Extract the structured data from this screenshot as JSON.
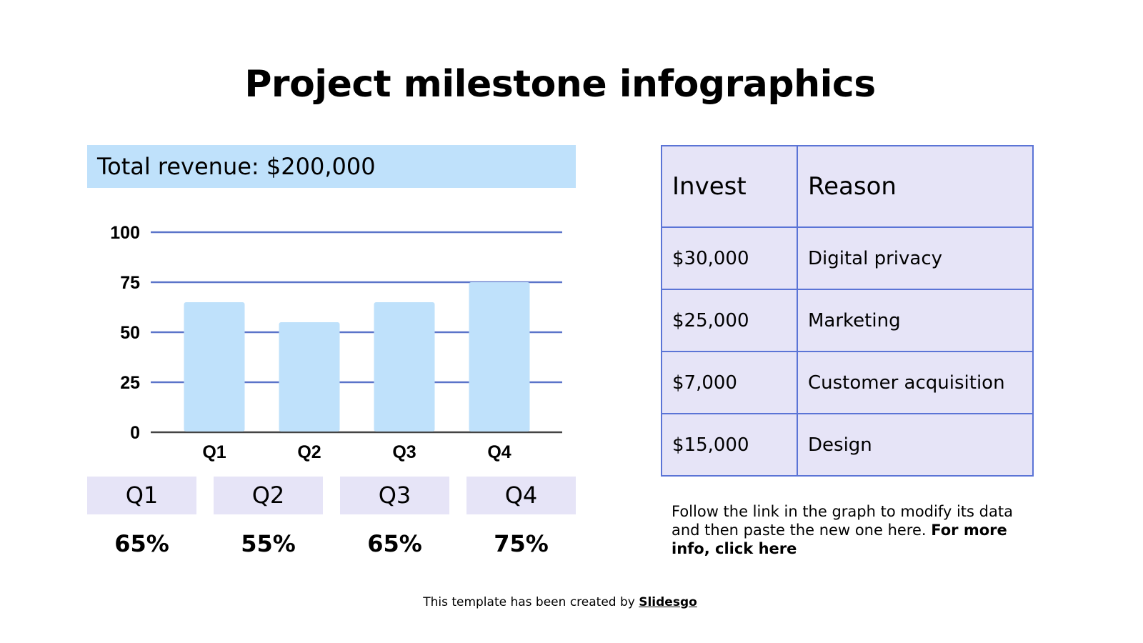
{
  "title": "Project milestone infographics",
  "revenue_label": "Total revenue: $200,000",
  "chart_data": {
    "type": "bar",
    "categories": [
      "Q1",
      "Q2",
      "Q3",
      "Q4"
    ],
    "values": [
      65,
      55,
      65,
      75
    ],
    "ylim": [
      0,
      100
    ],
    "yticks": [
      0,
      25,
      50,
      75,
      100
    ],
    "grid": true,
    "bar_color": "#bfe1fb",
    "grid_color": "#5b74c9"
  },
  "quarters": [
    {
      "label": "Q1",
      "percent": "65%"
    },
    {
      "label": "Q2",
      "percent": "55%"
    },
    {
      "label": "Q3",
      "percent": "65%"
    },
    {
      "label": "Q4",
      "percent": "75%"
    }
  ],
  "table": {
    "headers": [
      "Invest",
      "Reason"
    ],
    "rows": [
      [
        "$30,000",
        "Digital privacy"
      ],
      [
        "$25,000",
        "Marketing"
      ],
      [
        "$7,000",
        "Customer acquisition"
      ],
      [
        "$15,000",
        "Design"
      ]
    ]
  },
  "note": {
    "text": "Follow the link in the graph to modify its data and then paste the new one here. ",
    "link": "For more info, click here"
  },
  "footer": {
    "text": "This template has been created by ",
    "link": "Slidesgo"
  }
}
